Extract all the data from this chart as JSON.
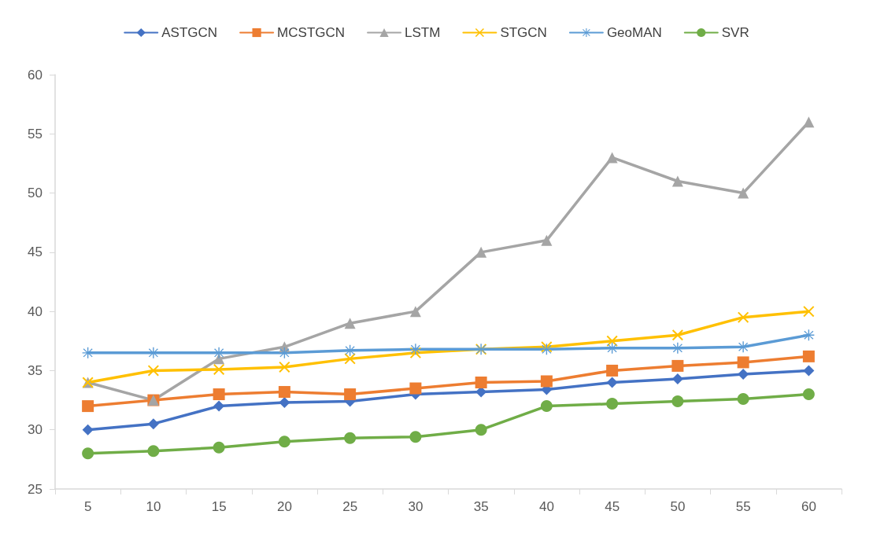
{
  "chart_data": {
    "type": "line",
    "categories": [
      "5",
      "10",
      "15",
      "20",
      "25",
      "30",
      "35",
      "40",
      "45",
      "50",
      "55",
      "60"
    ],
    "series": [
      {
        "name": "ASTGCN",
        "color": "#4472c4",
        "marker": "diamond",
        "values": [
          30,
          30.5,
          32,
          32.3,
          32.4,
          33,
          33.2,
          33.4,
          34,
          34.3,
          34.7,
          35
        ]
      },
      {
        "name": "MCSTGCN",
        "color": "#ed7d31",
        "marker": "square",
        "values": [
          32,
          32.5,
          33,
          33.2,
          33,
          33.5,
          34,
          34.1,
          35,
          35.4,
          35.7,
          36.2
        ]
      },
      {
        "name": "LSTM",
        "color": "#a5a5a5",
        "marker": "triangle",
        "values": [
          34,
          32.5,
          36,
          37,
          39,
          40,
          45,
          46,
          53,
          51,
          50,
          56
        ]
      },
      {
        "name": "STGCN",
        "color": "#ffc000",
        "marker": "cross",
        "values": [
          34,
          35,
          35.1,
          35.3,
          36,
          36.5,
          36.8,
          37,
          37.5,
          38,
          39.5,
          40
        ]
      },
      {
        "name": "GeoMAN",
        "color": "#5b9bd5",
        "marker": "star",
        "values": [
          36.5,
          36.5,
          36.5,
          36.5,
          36.7,
          36.8,
          36.8,
          36.8,
          36.9,
          36.9,
          37,
          38
        ]
      },
      {
        "name": "SVR",
        "color": "#70ad47",
        "marker": "circle",
        "values": [
          28,
          28.2,
          28.5,
          29,
          29.3,
          29.4,
          30,
          32,
          32.2,
          32.4,
          32.6,
          33
        ]
      }
    ],
    "ylim": [
      25,
      60
    ],
    "yticks": [
      25,
      30,
      35,
      40,
      45,
      50,
      55,
      60
    ],
    "grid": false,
    "legend": "top",
    "line_style": "solid"
  }
}
